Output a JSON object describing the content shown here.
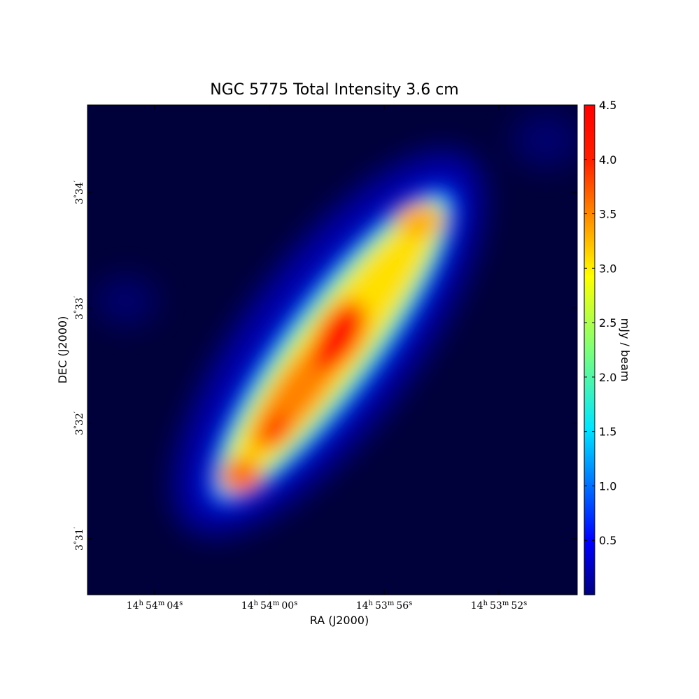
{
  "chart_data": {
    "type": "image",
    "title": "NGC 5775 Total Intensity 3.6 cm",
    "xlabel": "RA (J2000)",
    "ylabel": "DEC (J2000)",
    "xticks": [
      [
        "14",
        "h",
        "54",
        "m",
        "04",
        "s"
      ],
      [
        "14",
        "h",
        "54",
        "m",
        "00",
        "s"
      ],
      [
        "14",
        "h",
        "53",
        "m",
        "56",
        "s"
      ],
      [
        "14",
        "h",
        "53",
        "m",
        "52",
        "s"
      ]
    ],
    "yticks": [
      [
        "3",
        "°",
        "34",
        "′"
      ],
      [
        "3",
        "°",
        "33",
        "′"
      ],
      [
        "3",
        "°",
        "32",
        "′"
      ],
      [
        "3",
        "°",
        "31",
        "′"
      ]
    ],
    "colorbar": {
      "label": "mJy / beam",
      "lim": [
        0,
        4.5
      ],
      "ticks": [
        0.5,
        {
          "value": 1,
          "label": "1.0"
        },
        1.5,
        {
          "value": 2,
          "label": "2.0"
        },
        2.5,
        {
          "value": 3,
          "label": "3.0"
        },
        3.5,
        {
          "value": 4,
          "label": "4.0"
        },
        4.5
      ]
    }
  }
}
